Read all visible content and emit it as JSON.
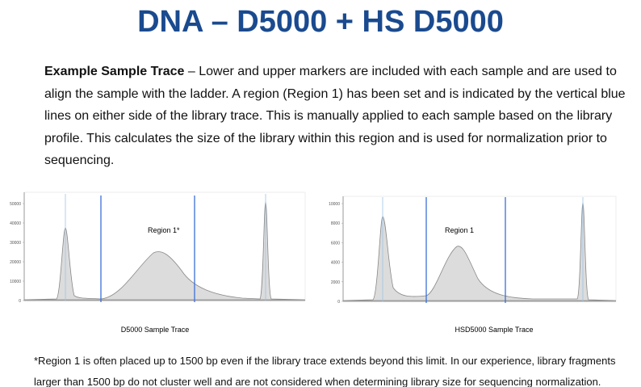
{
  "title": "DNA – D5000 + HS D5000",
  "description": {
    "lead": "Example Sample Trace",
    "text": " – Lower and upper markers are included with each sample and are used to align the sample with the ladder. A region (Region 1) has been set and is indicated by the vertical blue lines on either side of the library trace. This is manually applied to each sample based on the library profile. This calculates the size of the library within this region and is used for normalization prior to sequencing."
  },
  "charts": [
    {
      "region_label": "Region 1*",
      "caption": "D5000 Sample Trace",
      "yticks": [
        0,
        10000,
        20000,
        30000,
        40000,
        50000
      ]
    },
    {
      "region_label": "Region 1",
      "caption": "HSD5000 Sample Trace",
      "yticks": [
        0,
        2000,
        4000,
        6000,
        8000,
        10000
      ]
    }
  ],
  "footnote": "*Region 1 is often placed up to 1500 bp even if the library trace extends beyond this limit. In our experience, library fragments larger than 1500 bp do not cluster well and are not considered when determining library size for sequencing normalization."
}
